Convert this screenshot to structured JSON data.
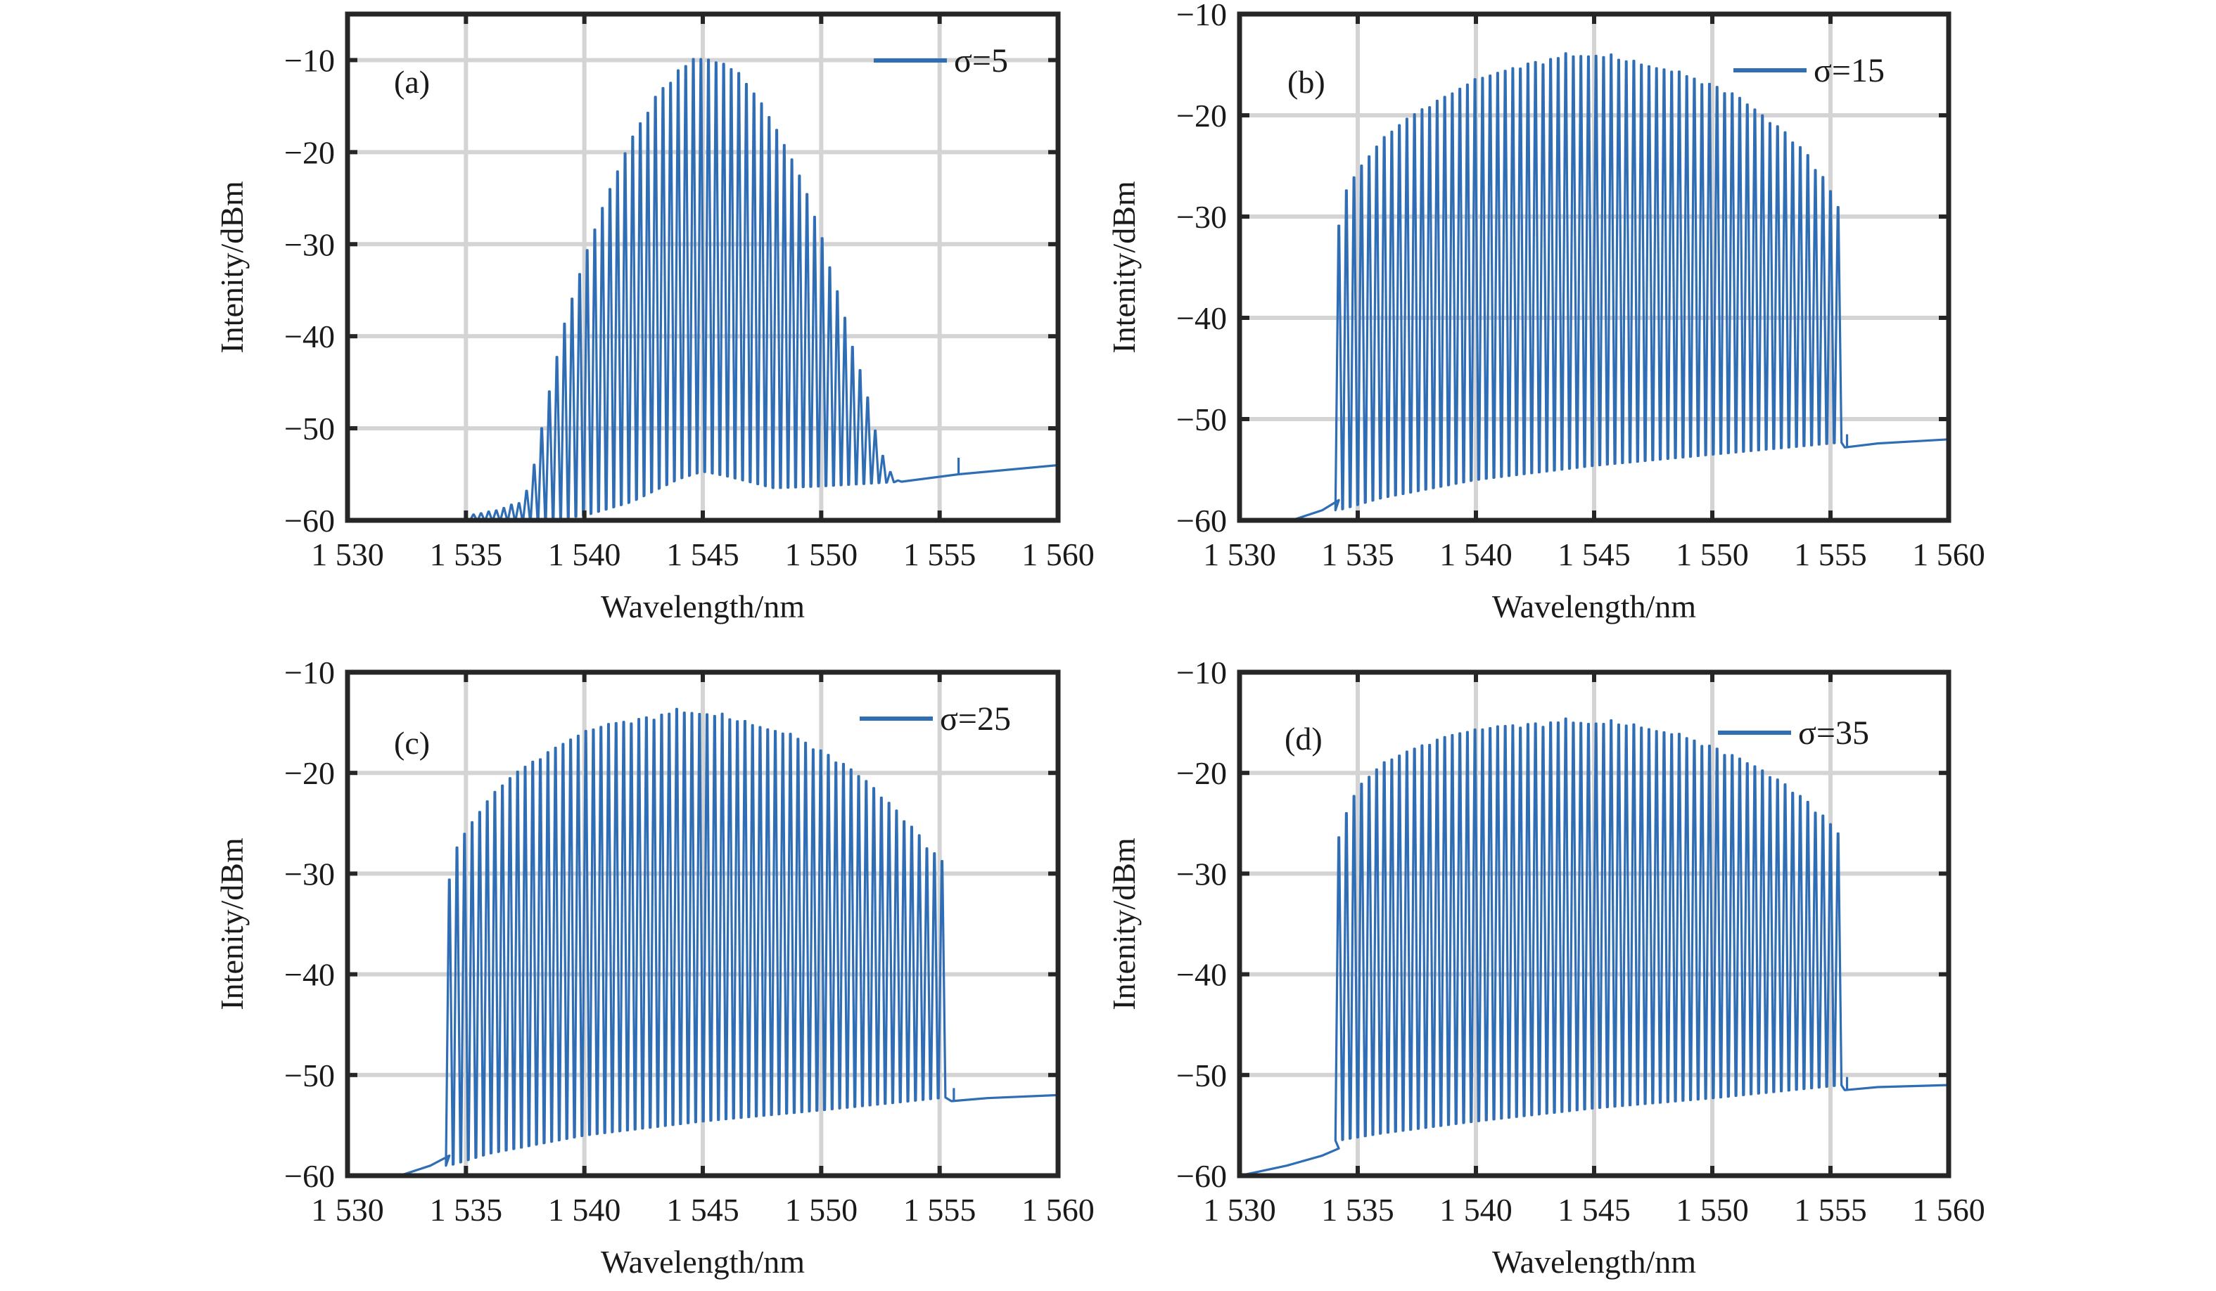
{
  "figure": {
    "panel_count": 4,
    "layout": "2x2"
  },
  "chart_data": [
    {
      "type": "line",
      "panel_label": "(a)",
      "legend": {
        "entries": [
          "σ=5"
        ],
        "placement": "top-right"
      },
      "xlabel": "Wavelength/nm",
      "ylabel": "Intenity/dBm",
      "xlim": [
        1530,
        1560
      ],
      "ylim": [
        -60,
        -5
      ],
      "xticks": [
        1530,
        1535,
        1540,
        1545,
        1550,
        1555,
        1560
      ],
      "xtick_labels": [
        "1 530",
        "1 535",
        "1 540",
        "1 545",
        "1 550",
        "1 555",
        "1 560"
      ],
      "yticks": [
        -60,
        -50,
        -40,
        -30,
        -20,
        -10
      ],
      "ytick_labels": [
        "−60",
        "−50",
        "−40",
        "−30",
        "−20",
        "−10"
      ],
      "grid": true,
      "color": "#2f6db5",
      "series": [
        {
          "name": "σ=5",
          "description": "Optical frequency comb, Gaussian-like envelope",
          "comb_spacing_nm": 0.32,
          "comb_start_nm": 1535.0,
          "comb_end_nm": 1553.4,
          "envelope_peaks": [
            [
              1535.0,
              -59.5
            ],
            [
              1536.2,
              -59.0
            ],
            [
              1537.4,
              -58.0
            ],
            [
              1537.8,
              -55.0
            ],
            [
              1538.2,
              -50.0
            ],
            [
              1539.0,
              -40.0
            ],
            [
              1540.0,
              -31.5
            ],
            [
              1541.0,
              -24.5
            ],
            [
              1542.0,
              -18.5
            ],
            [
              1543.0,
              -14.0
            ],
            [
              1544.0,
              -11.0
            ],
            [
              1545.0,
              -9.8
            ],
            [
              1546.0,
              -10.5
            ],
            [
              1547.0,
              -13.0
            ],
            [
              1548.0,
              -17.0
            ],
            [
              1549.0,
              -22.0
            ],
            [
              1550.0,
              -29.0
            ],
            [
              1551.0,
              -38.0
            ],
            [
              1551.9,
              -46.0
            ],
            [
              1552.4,
              -51.5
            ],
            [
              1552.8,
              -54.5
            ],
            [
              1553.4,
              -55.8
            ]
          ],
          "valley_floor": [
            [
              1535.0,
              -60.0
            ],
            [
              1538.0,
              -60.0
            ],
            [
              1540.0,
              -59.5
            ],
            [
              1542.0,
              -58.0
            ],
            [
              1544.0,
              -55.5
            ],
            [
              1545.0,
              -54.7
            ],
            [
              1546.0,
              -55.2
            ],
            [
              1548.0,
              -56.5
            ],
            [
              1550.0,
              -56.3
            ],
            [
              1553.4,
              -55.8
            ]
          ],
          "background": [
            [
              1553.4,
              -55.8
            ],
            [
              1555.8,
              -55.0
            ],
            [
              1560.0,
              -54.0
            ]
          ],
          "spurs": [
            [
              1555.8,
              -53.2
            ]
          ]
        }
      ]
    },
    {
      "type": "line",
      "panel_label": "(b)",
      "legend": {
        "entries": [
          "σ=15"
        ],
        "placement": "top-right"
      },
      "xlabel": "Wavelength/nm",
      "ylabel": "Intenity/dBm",
      "xlim": [
        1530,
        1560
      ],
      "ylim": [
        -60,
        -10
      ],
      "xticks": [
        1530,
        1535,
        1540,
        1545,
        1550,
        1555,
        1560
      ],
      "xtick_labels": [
        "1 530",
        "1 535",
        "1 540",
        "1 545",
        "1 550",
        "1 555",
        "1 560"
      ],
      "yticks": [
        -60,
        -50,
        -40,
        -30,
        -20,
        -10
      ],
      "ytick_labels": [
        "−60",
        "−50",
        "−40",
        "−30",
        "−20",
        "−10"
      ],
      "grid": true,
      "color": "#2f6db5",
      "series": [
        {
          "name": "σ=15",
          "description": "Flat-top optical frequency comb",
          "comb_spacing_nm": 0.32,
          "comb_start_nm": 1534.2,
          "comb_end_nm": 1555.5,
          "pre_tail": [
            [
              1532.2,
              -60.0
            ],
            [
              1533.5,
              -59.0
            ],
            [
              1534.2,
              -58.0
            ]
          ],
          "envelope_peaks": [
            [
              1534.2,
              -30.5
            ],
            [
              1534.5,
              -27.5
            ],
            [
              1535.0,
              -25.5
            ],
            [
              1536.0,
              -22.5
            ],
            [
              1537.0,
              -20.5
            ],
            [
              1538.0,
              -19.0
            ],
            [
              1539.0,
              -17.8
            ],
            [
              1540.0,
              -16.5
            ],
            [
              1541.0,
              -15.8
            ],
            [
              1542.0,
              -15.0
            ],
            [
              1543.0,
              -14.5
            ],
            [
              1544.0,
              -14.2
            ],
            [
              1545.0,
              -14.1
            ],
            [
              1546.0,
              -14.5
            ],
            [
              1547.0,
              -15.0
            ],
            [
              1548.0,
              -15.5
            ],
            [
              1549.0,
              -16.2
            ],
            [
              1550.0,
              -17.0
            ],
            [
              1551.0,
              -18.0
            ],
            [
              1552.0,
              -19.8
            ],
            [
              1553.0,
              -21.5
            ],
            [
              1554.0,
              -23.8
            ],
            [
              1554.8,
              -26.5
            ],
            [
              1555.3,
              -29.0
            ],
            [
              1555.5,
              -30.5
            ]
          ],
          "valley_floor": [
            [
              1534.2,
              -59.0
            ],
            [
              1536.0,
              -57.8
            ],
            [
              1540.0,
              -56.0
            ],
            [
              1545.0,
              -54.6
            ],
            [
              1550.0,
              -53.5
            ],
            [
              1555.5,
              -52.3
            ]
          ],
          "background": [
            [
              1555.6,
              -52.8
            ],
            [
              1557.0,
              -52.4
            ],
            [
              1560.0,
              -52.0
            ]
          ],
          "spurs": [
            [
              1555.7,
              -51.5
            ]
          ]
        }
      ]
    },
    {
      "type": "line",
      "panel_label": "(c)",
      "legend": {
        "entries": [
          "σ=25"
        ],
        "placement": "top-right"
      },
      "xlabel": "Wavelength/nm",
      "ylabel": "Intenity/dBm",
      "xlim": [
        1530,
        1560
      ],
      "ylim": [
        -60,
        -10
      ],
      "xticks": [
        1530,
        1535,
        1540,
        1545,
        1550,
        1555,
        1560
      ],
      "xtick_labels": [
        "1 530",
        "1 535",
        "1 540",
        "1 545",
        "1 550",
        "1 555",
        "1 560"
      ],
      "yticks": [
        -60,
        -50,
        -40,
        -30,
        -20,
        -10
      ],
      "ytick_labels": [
        "−60",
        "−50",
        "−40",
        "−30",
        "−20",
        "−10"
      ],
      "grid": true,
      "color": "#2f6db5",
      "series": [
        {
          "name": "σ=25",
          "description": "Flat-top optical frequency comb",
          "comb_spacing_nm": 0.32,
          "comb_start_nm": 1534.3,
          "comb_end_nm": 1555.4,
          "pre_tail": [
            [
              1532.2,
              -60.0
            ],
            [
              1533.5,
              -59.0
            ],
            [
              1534.3,
              -58.0
            ]
          ],
          "envelope_peaks": [
            [
              1534.3,
              -30.2
            ],
            [
              1534.6,
              -27.5
            ],
            [
              1535.0,
              -25.8
            ],
            [
              1536.0,
              -22.5
            ],
            [
              1537.0,
              -20.2
            ],
            [
              1538.0,
              -18.6
            ],
            [
              1539.0,
              -17.2
            ],
            [
              1540.0,
              -16.0
            ],
            [
              1541.0,
              -15.2
            ],
            [
              1542.0,
              -14.8
            ],
            [
              1543.0,
              -14.3
            ],
            [
              1544.0,
              -14.0
            ],
            [
              1545.0,
              -14.1
            ],
            [
              1546.0,
              -14.6
            ],
            [
              1547.0,
              -15.2
            ],
            [
              1548.0,
              -15.8
            ],
            [
              1549.0,
              -16.6
            ],
            [
              1550.0,
              -17.8
            ],
            [
              1551.0,
              -19.2
            ],
            [
              1552.0,
              -21.0
            ],
            [
              1553.0,
              -23.3
            ],
            [
              1554.0,
              -25.8
            ],
            [
              1554.7,
              -27.8
            ],
            [
              1555.2,
              -29.0
            ],
            [
              1555.4,
              -30.2
            ]
          ],
          "valley_floor": [
            [
              1534.3,
              -59.0
            ],
            [
              1536.0,
              -57.8
            ],
            [
              1540.0,
              -56.0
            ],
            [
              1545.0,
              -54.6
            ],
            [
              1550.0,
              -53.5
            ],
            [
              1555.4,
              -52.2
            ]
          ],
          "background": [
            [
              1555.5,
              -52.6
            ],
            [
              1557.0,
              -52.3
            ],
            [
              1560.0,
              -52.0
            ]
          ],
          "spurs": [
            [
              1555.6,
              -51.3
            ]
          ]
        }
      ]
    },
    {
      "type": "line",
      "panel_label": "(d)",
      "legend": {
        "entries": [
          "σ=35"
        ],
        "placement": "top-right"
      },
      "xlabel": "Wavelength/nm",
      "ylabel": "Intenity/dBm",
      "xlim": [
        1530,
        1560
      ],
      "ylim": [
        -60,
        -10
      ],
      "xticks": [
        1530,
        1535,
        1540,
        1545,
        1550,
        1555,
        1560
      ],
      "xtick_labels": [
        "1 530",
        "1 535",
        "1 540",
        "1 545",
        "1 550",
        "1 555",
        "1 560"
      ],
      "yticks": [
        -60,
        -50,
        -40,
        -30,
        -20,
        -10
      ],
      "ytick_labels": [
        "−60",
        "−50",
        "−40",
        "−30",
        "−20",
        "−10"
      ],
      "grid": true,
      "color": "#2f6db5",
      "series": [
        {
          "name": "σ=35",
          "description": "Flat-top optical frequency comb",
          "comb_spacing_nm": 0.32,
          "comb_start_nm": 1534.2,
          "comb_end_nm": 1555.5,
          "pre_tail": [
            [
              1530.0,
              -60.0
            ],
            [
              1532.0,
              -59.0
            ],
            [
              1533.5,
              -58.0
            ],
            [
              1534.2,
              -57.3
            ]
          ],
          "envelope_peaks": [
            [
              1534.2,
              -26.0
            ],
            [
              1534.6,
              -23.5
            ],
            [
              1535.0,
              -21.5
            ],
            [
              1536.0,
              -19.2
            ],
            [
              1537.0,
              -18.0
            ],
            [
              1538.0,
              -17.0
            ],
            [
              1539.0,
              -16.2
            ],
            [
              1540.0,
              -15.8
            ],
            [
              1541.0,
              -15.4
            ],
            [
              1542.0,
              -15.2
            ],
            [
              1543.0,
              -15.0
            ],
            [
              1544.0,
              -15.0
            ],
            [
              1545.0,
              -15.1
            ],
            [
              1546.0,
              -15.2
            ],
            [
              1547.0,
              -15.5
            ],
            [
              1548.0,
              -16.0
            ],
            [
              1549.0,
              -16.6
            ],
            [
              1550.0,
              -17.4
            ],
            [
              1551.0,
              -18.4
            ],
            [
              1552.0,
              -19.6
            ],
            [
              1553.0,
              -21.0
            ],
            [
              1554.0,
              -22.8
            ],
            [
              1554.8,
              -24.5
            ],
            [
              1555.3,
              -26.0
            ],
            [
              1555.5,
              -27.0
            ]
          ],
          "valley_floor": [
            [
              1534.2,
              -56.5
            ],
            [
              1536.0,
              -55.8
            ],
            [
              1540.0,
              -54.6
            ],
            [
              1545.0,
              -53.3
            ],
            [
              1550.0,
              -52.3
            ],
            [
              1555.5,
              -51.0
            ]
          ],
          "background": [
            [
              1555.6,
              -51.5
            ],
            [
              1557.0,
              -51.2
            ],
            [
              1560.0,
              -51.0
            ]
          ],
          "spurs": [
            [
              1555.7,
              -50.2
            ]
          ]
        }
      ]
    }
  ]
}
